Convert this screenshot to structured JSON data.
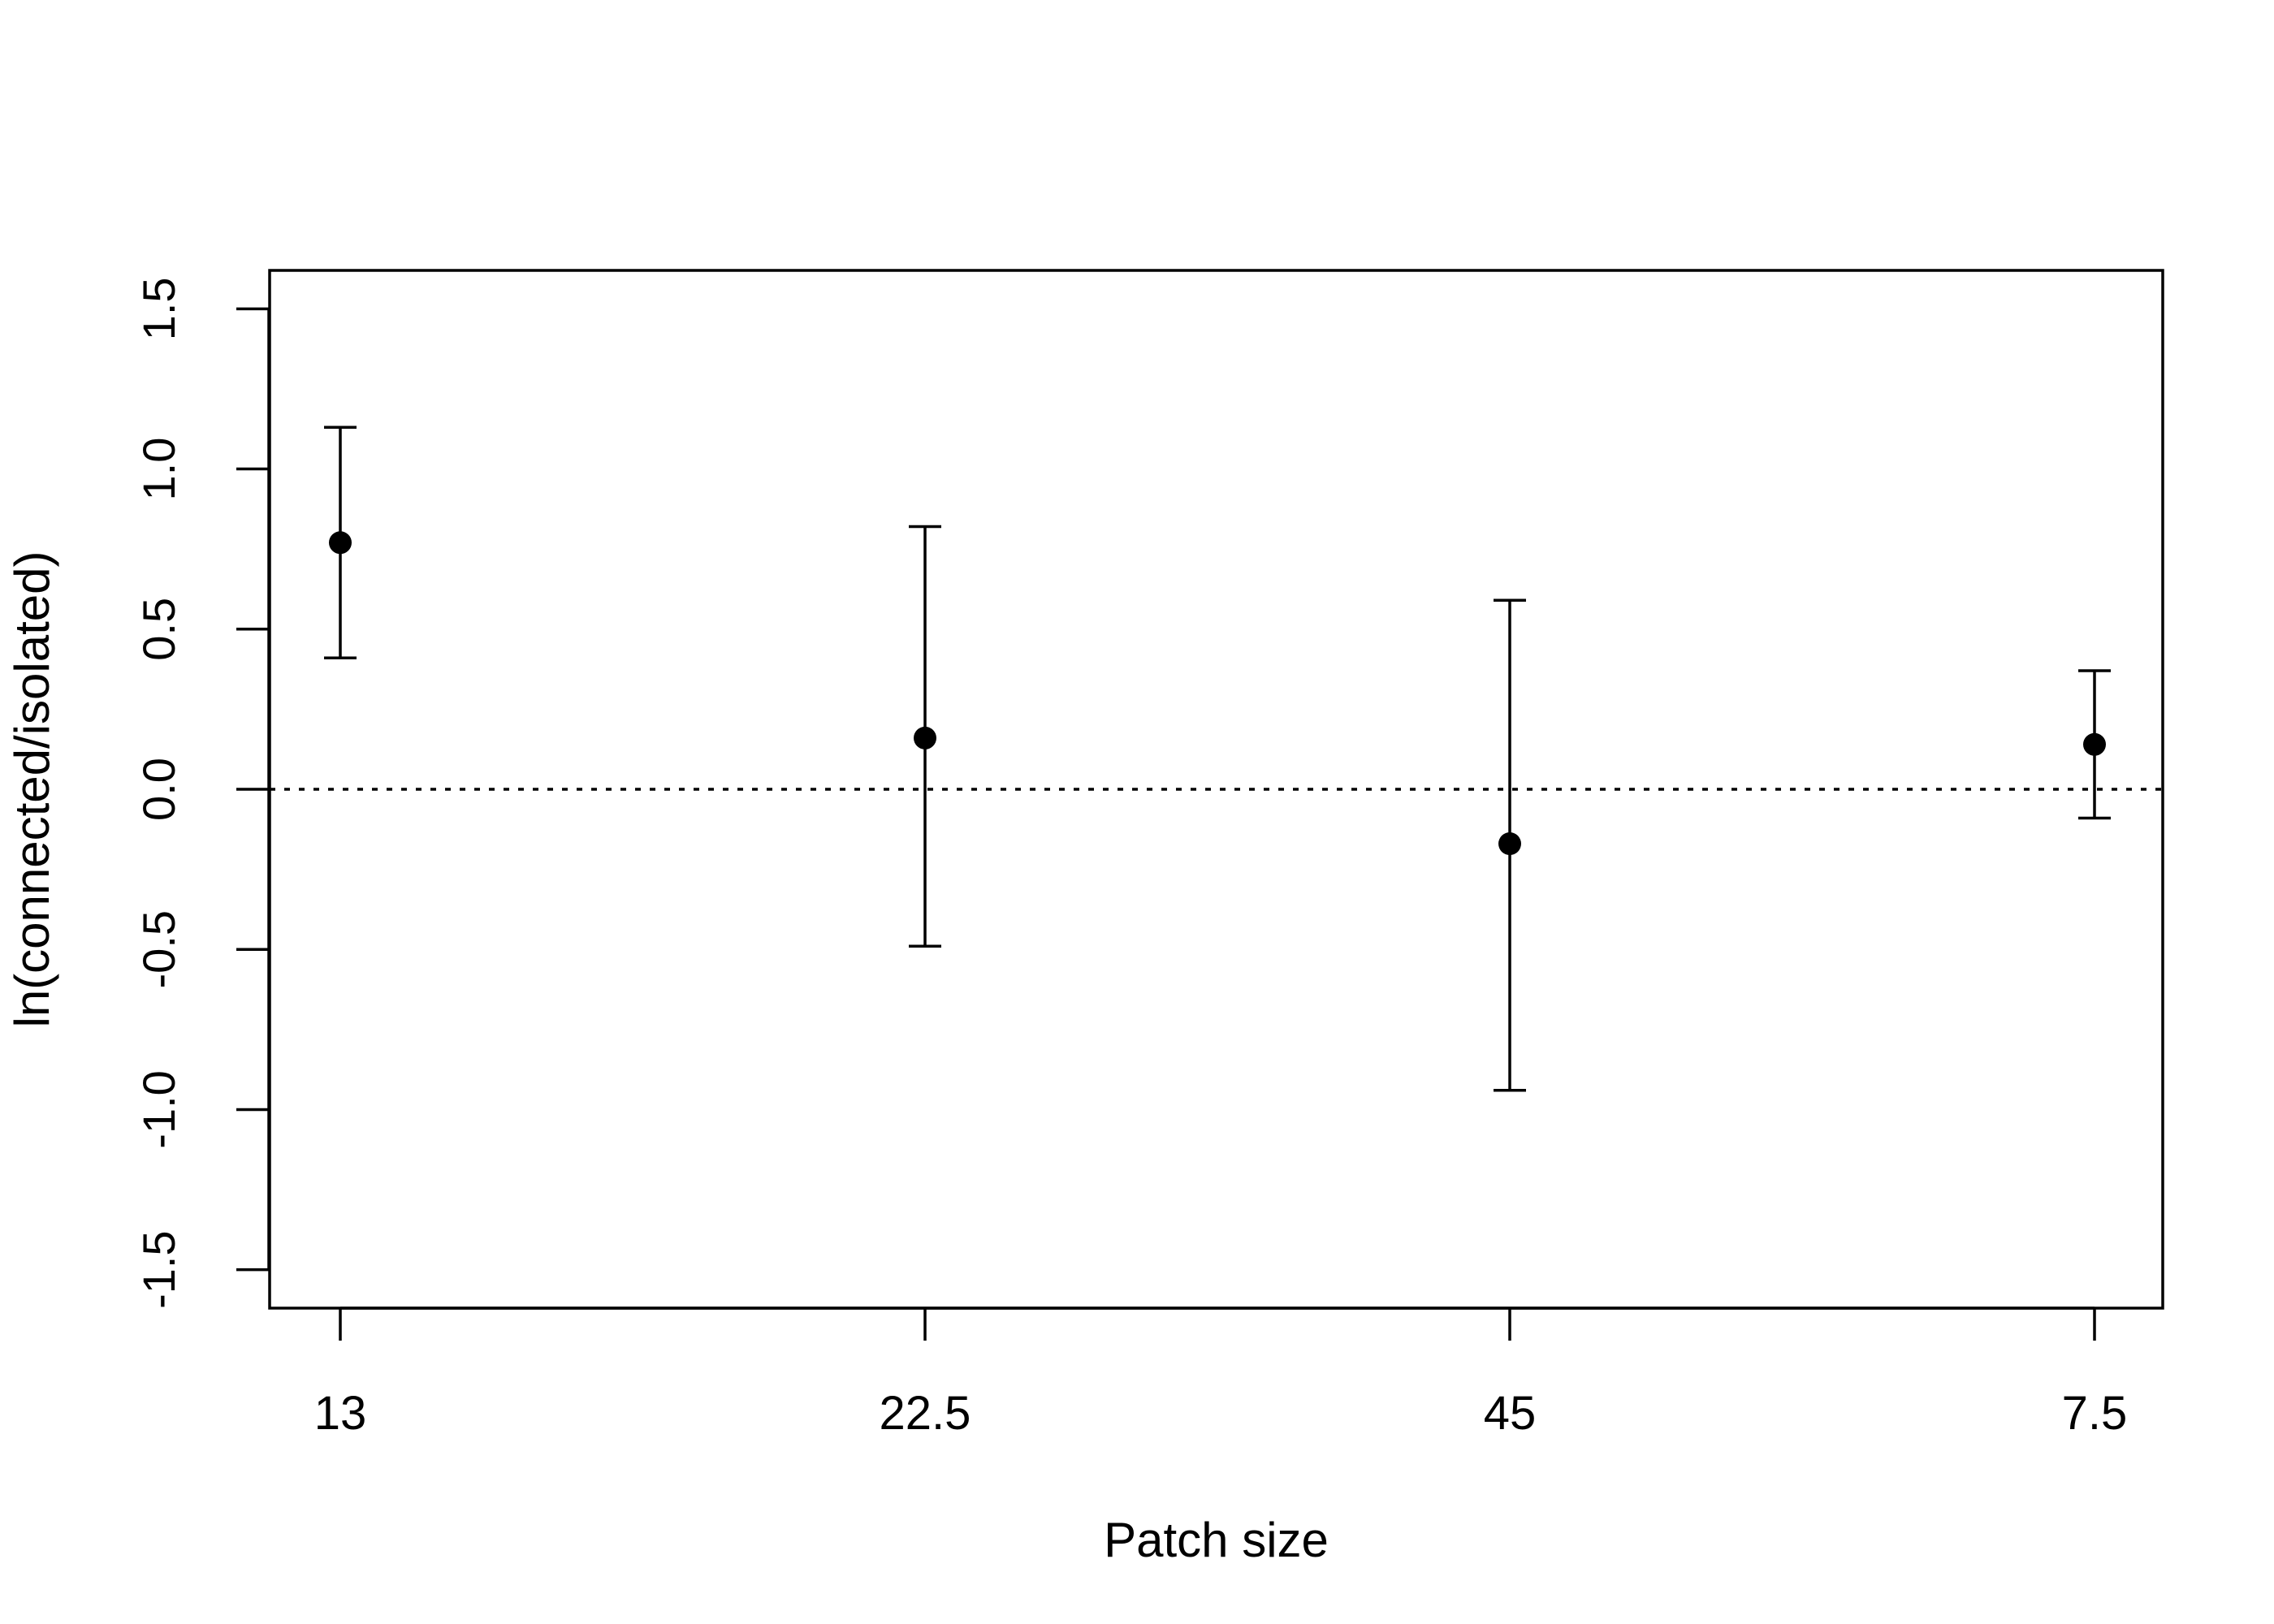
{
  "chart_data": {
    "type": "scatter",
    "xlabel": "Patch size",
    "ylabel": "ln(connected/isolated)",
    "categories": [
      "13",
      "22.5",
      "45",
      "7.5"
    ],
    "y_ticks": [
      -1.5,
      -1.0,
      -0.5,
      0.0,
      0.5,
      1.0,
      1.5
    ],
    "y_tick_labels": [
      "-1.5",
      "-1.0",
      "-0.5",
      "0.0",
      "0.5",
      "1.0",
      "1.5"
    ],
    "ylim": [
      -1.62,
      1.62
    ],
    "reference_line": {
      "y": 0.0,
      "style": "dotted"
    },
    "series": [
      {
        "values": [
          0.77,
          0.16,
          -0.17,
          0.14
        ],
        "lower": [
          0.41,
          -0.49,
          -0.94,
          -0.09
        ],
        "upper": [
          1.13,
          0.82,
          0.59,
          0.37
        ]
      }
    ],
    "grid": false,
    "colors": {
      "points": "#000000",
      "axes": "#000000"
    }
  }
}
